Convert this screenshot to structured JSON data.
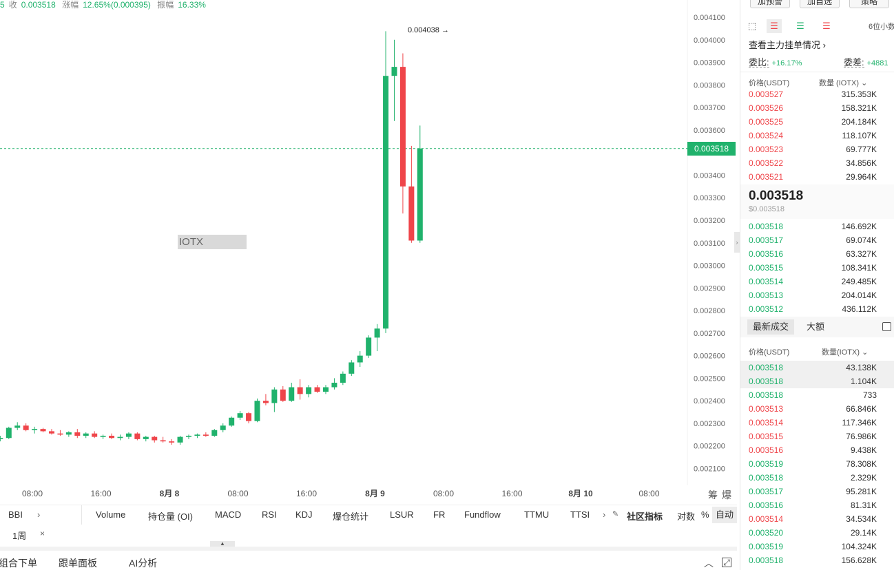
{
  "info_line": {
    "prefix": "5",
    "close_label": "收",
    "close_value": "0.003518",
    "change_label": "涨幅",
    "change_value": "12.65%(0.000395)",
    "amplitude_label": "振幅",
    "amplitude_value": "16.33%"
  },
  "chart_data": {
    "type": "candlestick",
    "symbol_watermark": "IOTX",
    "current_price": "0.003518",
    "high_label": "0.004038",
    "ylim": [
      0.00205,
      0.00411
    ],
    "y_ticks": [
      "0.004100",
      "0.004000",
      "0.003900",
      "0.003800",
      "0.003700",
      "0.003600",
      "0.003500",
      "0.003400",
      "0.003300",
      "0.003200",
      "0.003100",
      "0.003000",
      "0.002900",
      "0.002800",
      "0.002700",
      "0.002600",
      "0.002500",
      "0.002400",
      "0.002300",
      "0.002200",
      "0.002100"
    ],
    "x_ticks": [
      {
        "label": "08:00",
        "bold": false
      },
      {
        "label": "16:00",
        "bold": false
      },
      {
        "label": "8月 8",
        "bold": true
      },
      {
        "label": "08:00",
        "bold": false
      },
      {
        "label": "16:00",
        "bold": false
      },
      {
        "label": "8月 9",
        "bold": true
      },
      {
        "label": "08:00",
        "bold": false
      },
      {
        "label": "16:00",
        "bold": false
      },
      {
        "label": "8月 10",
        "bold": true
      },
      {
        "label": "08:00",
        "bold": false
      }
    ],
    "x_tick_hours": [
      8,
      16,
      24,
      32,
      40,
      48,
      56,
      64,
      72,
      80
    ],
    "candle_hours_start": -3.75,
    "candle_hours_step": 1,
    "candles": [
      {
        "o": 0.00224,
        "h": 0.002265,
        "l": 0.002235,
        "c": 0.002255
      },
      {
        "o": 0.002255,
        "h": 0.002265,
        "l": 0.00224,
        "c": 0.00226
      },
      {
        "o": 0.00226,
        "h": 0.00227,
        "l": 0.00223,
        "c": 0.002235
      },
      {
        "o": 0.002235,
        "h": 0.00225,
        "l": 0.00223,
        "c": 0.00224
      },
      {
        "o": 0.00224,
        "h": 0.002255,
        "l": 0.002225,
        "c": 0.002245
      },
      {
        "o": 0.002245,
        "h": 0.002255,
        "l": 0.00223,
        "c": 0.002235
      },
      {
        "o": 0.002235,
        "h": 0.002255,
        "l": 0.002225,
        "c": 0.00225
      },
      {
        "o": 0.00225,
        "h": 0.00226,
        "l": 0.002225,
        "c": 0.00223
      },
      {
        "o": 0.00223,
        "h": 0.002245,
        "l": 0.00222,
        "c": 0.002235
      },
      {
        "o": 0.002235,
        "h": 0.002285,
        "l": 0.00223,
        "c": 0.00228
      },
      {
        "o": 0.00228,
        "h": 0.002305,
        "l": 0.00227,
        "c": 0.00229
      },
      {
        "o": 0.00229,
        "h": 0.0023,
        "l": 0.002265,
        "c": 0.00227
      },
      {
        "o": 0.00227,
        "h": 0.002285,
        "l": 0.002255,
        "c": 0.002275
      },
      {
        "o": 0.002275,
        "h": 0.00228,
        "l": 0.00226,
        "c": 0.002265
      },
      {
        "o": 0.002265,
        "h": 0.002275,
        "l": 0.00225,
        "c": 0.002255
      },
      {
        "o": 0.002255,
        "h": 0.00227,
        "l": 0.002245,
        "c": 0.00225
      },
      {
        "o": 0.00225,
        "h": 0.002265,
        "l": 0.00224,
        "c": 0.00226
      },
      {
        "o": 0.00226,
        "h": 0.002275,
        "l": 0.002235,
        "c": 0.002245
      },
      {
        "o": 0.002245,
        "h": 0.00226,
        "l": 0.002235,
        "c": 0.002255
      },
      {
        "o": 0.002255,
        "h": 0.002265,
        "l": 0.002235,
        "c": 0.00224
      },
      {
        "o": 0.00224,
        "h": 0.00225,
        "l": 0.00223,
        "c": 0.002245
      },
      {
        "o": 0.002245,
        "h": 0.002255,
        "l": 0.00223,
        "c": 0.002235
      },
      {
        "o": 0.002235,
        "h": 0.00225,
        "l": 0.002225,
        "c": 0.00224
      },
      {
        "o": 0.00224,
        "h": 0.00226,
        "l": 0.00223,
        "c": 0.002255
      },
      {
        "o": 0.002255,
        "h": 0.00226,
        "l": 0.002225,
        "c": 0.00223
      },
      {
        "o": 0.00223,
        "h": 0.002245,
        "l": 0.00222,
        "c": 0.00224
      },
      {
        "o": 0.00224,
        "h": 0.002245,
        "l": 0.002215,
        "c": 0.002225
      },
      {
        "o": 0.002225,
        "h": 0.00224,
        "l": 0.002215,
        "c": 0.00222
      },
      {
        "o": 0.00222,
        "h": 0.00223,
        "l": 0.002205,
        "c": 0.002215
      },
      {
        "o": 0.002215,
        "h": 0.002245,
        "l": 0.002205,
        "c": 0.00224
      },
      {
        "o": 0.00224,
        "h": 0.00225,
        "l": 0.00223,
        "c": 0.002245
      },
      {
        "o": 0.002245,
        "h": 0.002255,
        "l": 0.002235,
        "c": 0.00225
      },
      {
        "o": 0.00225,
        "h": 0.00226,
        "l": 0.00224,
        "c": 0.002245
      },
      {
        "o": 0.002245,
        "h": 0.002275,
        "l": 0.00224,
        "c": 0.00227
      },
      {
        "o": 0.00227,
        "h": 0.0023,
        "l": 0.00226,
        "c": 0.00229
      },
      {
        "o": 0.00229,
        "h": 0.00233,
        "l": 0.002285,
        "c": 0.002325
      },
      {
        "o": 0.002325,
        "h": 0.002355,
        "l": 0.002315,
        "c": 0.002345
      },
      {
        "o": 0.002345,
        "h": 0.00235,
        "l": 0.0023,
        "c": 0.00231
      },
      {
        "o": 0.00231,
        "h": 0.00241,
        "l": 0.002305,
        "c": 0.0024
      },
      {
        "o": 0.0024,
        "h": 0.00243,
        "l": 0.00238,
        "c": 0.00239
      },
      {
        "o": 0.00239,
        "h": 0.00246,
        "l": 0.00235,
        "c": 0.00245
      },
      {
        "o": 0.00245,
        "h": 0.002465,
        "l": 0.002395,
        "c": 0.0024
      },
      {
        "o": 0.0024,
        "h": 0.00248,
        "l": 0.002395,
        "c": 0.00246
      },
      {
        "o": 0.00246,
        "h": 0.002495,
        "l": 0.002405,
        "c": 0.00243
      },
      {
        "o": 0.00243,
        "h": 0.00247,
        "l": 0.002415,
        "c": 0.00246
      },
      {
        "o": 0.00246,
        "h": 0.00247,
        "l": 0.002435,
        "c": 0.00244
      },
      {
        "o": 0.00244,
        "h": 0.00247,
        "l": 0.00243,
        "c": 0.00246
      },
      {
        "o": 0.00246,
        "h": 0.0025,
        "l": 0.00245,
        "c": 0.00248
      },
      {
        "o": 0.00248,
        "h": 0.00253,
        "l": 0.00247,
        "c": 0.00252
      },
      {
        "o": 0.00252,
        "h": 0.00258,
        "l": 0.00251,
        "c": 0.00257
      },
      {
        "o": 0.00257,
        "h": 0.00262,
        "l": 0.00255,
        "c": 0.0026
      },
      {
        "o": 0.0026,
        "h": 0.00269,
        "l": 0.00259,
        "c": 0.00268
      },
      {
        "o": 0.00268,
        "h": 0.00274,
        "l": 0.00262,
        "c": 0.00272
      },
      {
        "o": 0.00272,
        "h": 0.004038,
        "l": 0.0027,
        "c": 0.00384
      },
      {
        "o": 0.00384,
        "h": 0.004,
        "l": 0.00364,
        "c": 0.00388
      },
      {
        "o": 0.00388,
        "h": 0.00394,
        "l": 0.00323,
        "c": 0.00335
      },
      {
        "o": 0.00335,
        "h": 0.00353,
        "l": 0.0031,
        "c": 0.00311
      },
      {
        "o": 0.00311,
        "h": 0.00362,
        "l": 0.0031,
        "c": 0.003518
      }
    ]
  },
  "x_axis_icons": {
    "scale_icon": "筹",
    "burst_icon": "爆"
  },
  "indicators": {
    "items": [
      "BBI",
      "Volume",
      "持仓量 (OI)",
      "MACD",
      "RSI",
      "KDJ",
      "爆仓统计",
      "LSUR",
      "FR",
      "Fundflow",
      "TTMU",
      "TTSI"
    ],
    "community": "社区指标",
    "log_label": "对数",
    "percent_label": "%",
    "auto_label": "自动"
  },
  "period": {
    "label": "1周",
    "close": "×"
  },
  "bottom_bar": {
    "combo_order": "组合下单",
    "follow_panel": "跟单面板",
    "ai_analysis": "AI分析"
  },
  "panel": {
    "top_buttons": [
      "加预警",
      "加自选",
      "策略"
    ],
    "decimals": "6位小数",
    "mainforce": "查看主力挂单情况",
    "ratio_label": "委比:",
    "ratio_value": "+16.17%",
    "diff_label": "委差:",
    "diff_value": "+4881",
    "orderbook_price_header": "价格(USDT)",
    "orderbook_qty_header": "数量 (IOTX)",
    "asks": [
      {
        "price": "0.003527",
        "qty": "315.353K"
      },
      {
        "price": "0.003526",
        "qty": "158.321K"
      },
      {
        "price": "0.003525",
        "qty": "204.184K"
      },
      {
        "price": "0.003524",
        "qty": "118.107K"
      },
      {
        "price": "0.003523",
        "qty": "69.777K"
      },
      {
        "price": "0.003522",
        "qty": "34.856K"
      },
      {
        "price": "0.003521",
        "qty": "29.964K"
      }
    ],
    "last_price": "0.003518",
    "last_price_usd": "$0.003518",
    "bids": [
      {
        "price": "0.003518",
        "qty": "146.692K"
      },
      {
        "price": "0.003517",
        "qty": "69.074K"
      },
      {
        "price": "0.003516",
        "qty": "63.327K"
      },
      {
        "price": "0.003515",
        "qty": "108.341K"
      },
      {
        "price": "0.003514",
        "qty": "249.485K"
      },
      {
        "price": "0.003513",
        "qty": "204.014K"
      },
      {
        "price": "0.003512",
        "qty": "436.112K"
      }
    ],
    "trade_tab_latest": "最新成交",
    "trade_tab_large": "大额",
    "trades_price_header": "价格(USDT)",
    "trades_qty_header": "数量(IOTX)",
    "trades": [
      {
        "price": "0.003518",
        "qty": "43.138K",
        "side": "buy"
      },
      {
        "price": "0.003518",
        "qty": "1.104K",
        "side": "buy"
      },
      {
        "price": "0.003518",
        "qty": "733",
        "side": "buy"
      },
      {
        "price": "0.003513",
        "qty": "66.846K",
        "side": "sell"
      },
      {
        "price": "0.003514",
        "qty": "117.346K",
        "side": "sell"
      },
      {
        "price": "0.003515",
        "qty": "76.986K",
        "side": "sell"
      },
      {
        "price": "0.003516",
        "qty": "9.438K",
        "side": "sell"
      },
      {
        "price": "0.003519",
        "qty": "78.308K",
        "side": "buy"
      },
      {
        "price": "0.003518",
        "qty": "2.329K",
        "side": "buy"
      },
      {
        "price": "0.003517",
        "qty": "95.281K",
        "side": "buy"
      },
      {
        "price": "0.003516",
        "qty": "81.31K",
        "side": "buy"
      },
      {
        "price": "0.003514",
        "qty": "34.534K",
        "side": "sell"
      },
      {
        "price": "0.003520",
        "qty": "29.14K",
        "side": "buy"
      },
      {
        "price": "0.003519",
        "qty": "104.324K",
        "side": "buy"
      },
      {
        "price": "0.003518",
        "qty": "156.628K",
        "side": "buy"
      }
    ]
  },
  "colors": {
    "up": "#20b26c",
    "down": "#ef454a",
    "price_line": "#20b26c"
  }
}
